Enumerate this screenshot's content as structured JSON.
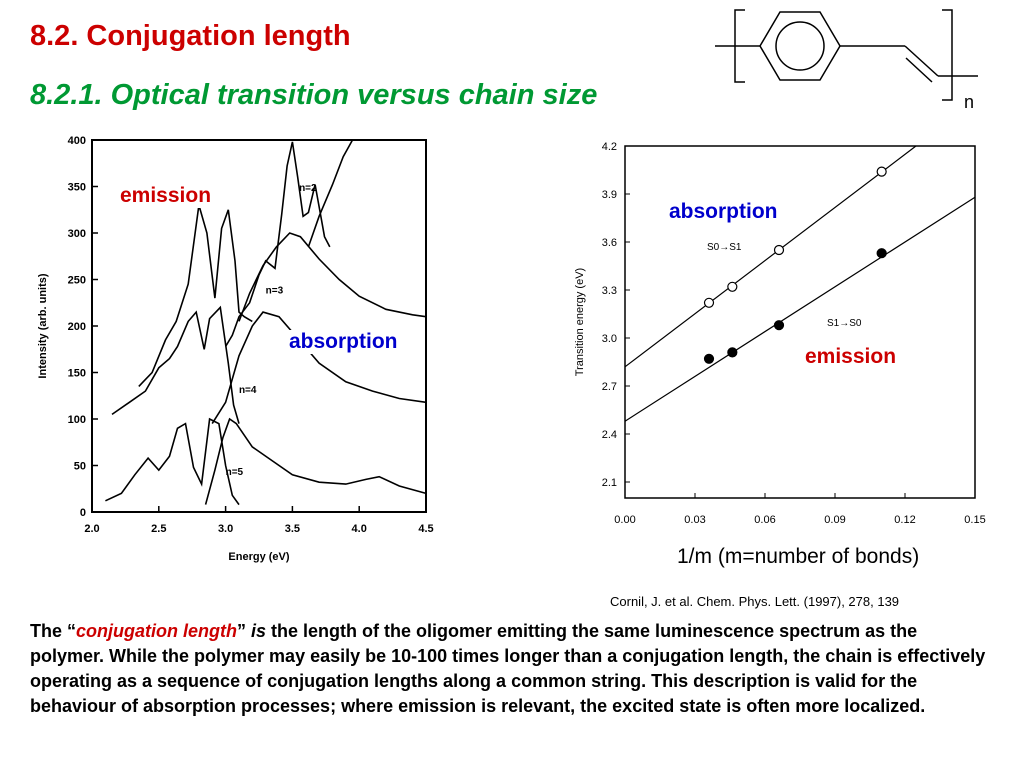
{
  "slide": {
    "title": "8.2. Conjugation length",
    "subtitle": "8.2.1. Optical transition versus chain size",
    "molecule_subscript": "n",
    "citation": "Cornil, J. et al. Chem. Phys. Lett. (1997), 278, 139",
    "x_caption": "1/m (m=number of bonds)",
    "body": {
      "p1": "The “",
      "term": "conjugation  length",
      "p2": "” ",
      "is": "is",
      "p3": " the length of the oligomer emitting the same luminescence spectrum as the polymer. While the polymer may easily be 10-100 times longer than a conjugation length, the chain is effectively operating as a sequence of  conjugation lengths along a common string. This description is valid for the behaviour of absorption processes; where emission is relevant, the excited state is often more localized."
    },
    "colors": {
      "title": "#cc0000",
      "subtitle": "#009933",
      "red_label": "#cc0000",
      "blue_label": "#0000cc"
    }
  },
  "chart_data": [
    {
      "type": "line",
      "xlabel": "Energy (eV)",
      "ylabel": "Intensity (arb. units)",
      "xlim": [
        2.0,
        4.5
      ],
      "ylim": [
        0,
        400
      ],
      "xticks": [
        "2.0",
        "2.5",
        "3.0",
        "3.5",
        "4.0",
        "4.5"
      ],
      "yticks": [
        "0",
        "50",
        "100",
        "150",
        "200",
        "250",
        "300",
        "350",
        "400"
      ],
      "overlay_labels": {
        "emission": "emission",
        "absorption": "absorption"
      },
      "spectra": [
        {
          "label": "n=2",
          "emission": [
            [
              3.0,
              178
            ],
            [
              3.05,
              190
            ],
            [
              3.1,
              210
            ],
            [
              3.18,
              225
            ],
            [
              3.25,
              255
            ],
            [
              3.3,
              270
            ],
            [
              3.37,
              262
            ],
            [
              3.42,
              320
            ],
            [
              3.46,
              372
            ],
            [
              3.5,
              398
            ],
            [
              3.54,
              360
            ],
            [
              3.58,
              318
            ],
            [
              3.62,
              322
            ],
            [
              3.67,
              352
            ],
            [
              3.71,
              320
            ],
            [
              3.74,
              296
            ],
            [
              3.78,
              285
            ]
          ],
          "absorption": [
            [
              3.62,
              285
            ],
            [
              3.7,
              318
            ],
            [
              3.8,
              352
            ],
            [
              3.88,
              382
            ],
            [
              3.95,
              400
            ]
          ]
        },
        {
          "label": "n=3",
          "emission": [
            [
              2.35,
              135
            ],
            [
              2.45,
              150
            ],
            [
              2.55,
              185
            ],
            [
              2.63,
              205
            ],
            [
              2.72,
              245
            ],
            [
              2.8,
              330
            ],
            [
              2.86,
              300
            ],
            [
              2.92,
              230
            ],
            [
              2.97,
              305
            ],
            [
              3.02,
              325
            ],
            [
              3.07,
              270
            ],
            [
              3.1,
              215
            ],
            [
              3.14,
              210
            ],
            [
              3.2,
              205
            ]
          ],
          "absorption": [
            [
              3.1,
              205
            ],
            [
              3.18,
              235
            ],
            [
              3.28,
              265
            ],
            [
              3.38,
              285
            ],
            [
              3.48,
              300
            ],
            [
              3.56,
              296
            ],
            [
              3.7,
              272
            ],
            [
              3.85,
              250
            ],
            [
              4.0,
              232
            ],
            [
              4.2,
              218
            ],
            [
              4.4,
              212
            ],
            [
              4.5,
              210
            ]
          ]
        },
        {
          "label": "n=4",
          "emission": [
            [
              2.15,
              105
            ],
            [
              2.28,
              118
            ],
            [
              2.4,
              130
            ],
            [
              2.5,
              155
            ],
            [
              2.58,
              165
            ],
            [
              2.64,
              178
            ],
            [
              2.72,
              205
            ],
            [
              2.78,
              215
            ],
            [
              2.84,
              175
            ],
            [
              2.88,
              208
            ],
            [
              2.96,
              220
            ],
            [
              3.02,
              160
            ],
            [
              3.06,
              115
            ],
            [
              3.1,
              95
            ]
          ],
          "absorption": [
            [
              2.9,
              95
            ],
            [
              3.0,
              118
            ],
            [
              3.1,
              168
            ],
            [
              3.2,
              200
            ],
            [
              3.28,
              215
            ],
            [
              3.4,
              210
            ],
            [
              3.55,
              185
            ],
            [
              3.7,
              160
            ],
            [
              3.9,
              140
            ],
            [
              4.1,
              130
            ],
            [
              4.3,
              122
            ],
            [
              4.5,
              118
            ]
          ]
        },
        {
          "label": "n=5",
          "emission": [
            [
              2.1,
              12
            ],
            [
              2.22,
              20
            ],
            [
              2.32,
              40
            ],
            [
              2.42,
              58
            ],
            [
              2.5,
              45
            ],
            [
              2.58,
              60
            ],
            [
              2.64,
              90
            ],
            [
              2.7,
              95
            ],
            [
              2.76,
              48
            ],
            [
              2.82,
              30
            ],
            [
              2.88,
              100
            ],
            [
              2.95,
              95
            ],
            [
              3.0,
              50
            ],
            [
              3.05,
              18
            ],
            [
              3.1,
              8
            ]
          ],
          "absorption": [
            [
              2.85,
              8
            ],
            [
              2.92,
              45
            ],
            [
              2.98,
              80
            ],
            [
              3.03,
              100
            ],
            [
              3.08,
              95
            ],
            [
              3.2,
              70
            ],
            [
              3.35,
              55
            ],
            [
              3.5,
              40
            ],
            [
              3.7,
              32
            ],
            [
              3.9,
              30
            ],
            [
              4.05,
              35
            ],
            [
              4.15,
              38
            ],
            [
              4.3,
              28
            ],
            [
              4.5,
              20
            ]
          ]
        }
      ]
    },
    {
      "type": "scatter",
      "xlabel": "",
      "ylabel": "Transition energy (eV)",
      "xlim": [
        0.0,
        0.15
      ],
      "ylim": [
        2.0,
        4.2
      ],
      "xticks": [
        "0.00",
        "0.03",
        "0.06",
        "0.09",
        "0.12",
        "0.15"
      ],
      "yticks": [
        "2.1",
        "2.4",
        "2.7",
        "3.0",
        "3.3",
        "3.6",
        "3.9",
        "4.2"
      ],
      "overlay_labels": {
        "absorption": "absorption",
        "emission": "emission"
      },
      "series": [
        {
          "name": "S0→S1",
          "marker": "open-circle",
          "x": [
            0.036,
            0.046,
            0.066,
            0.11
          ],
          "y": [
            3.22,
            3.32,
            3.55,
            4.04
          ],
          "fit": [
            [
              0.0,
              2.82
            ],
            [
              0.15,
              4.48
            ]
          ]
        },
        {
          "name": "S1→S0",
          "marker": "filled-circle",
          "x": [
            0.036,
            0.046,
            0.066,
            0.11
          ],
          "y": [
            2.87,
            2.91,
            3.08,
            3.53
          ],
          "fit": [
            [
              0.0,
              2.48
            ],
            [
              0.15,
              3.88
            ]
          ]
        }
      ]
    }
  ]
}
